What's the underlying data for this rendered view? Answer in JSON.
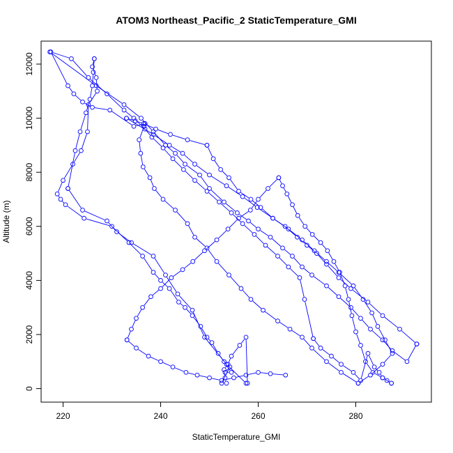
{
  "chart_data": {
    "type": "line",
    "title": "ATOM3 Northeast_Pacific_2 StaticTemperature_GMI",
    "xlabel": "StaticTemperature_GMI",
    "ylabel": "Altitude (m)",
    "xlim": [
      215.5,
      295.5
    ],
    "ylim": [
      -500,
      12850
    ],
    "x_ticks": [
      220,
      240,
      260,
      280
    ],
    "y_ticks": [
      0,
      2000,
      4000,
      6000,
      8000,
      10000,
      12000
    ],
    "grid": false,
    "color": "#0000ff",
    "marker": "open-circle",
    "series": [
      {
        "x": [
          253.5,
          253.2,
          253,
          253.8,
          254.5,
          256.2,
          257.5,
          257.8
        ],
        "y": [
          200,
          400,
          700,
          900,
          1200,
          1600,
          1900,
          200
        ]
      },
      {
        "x": [
          257.5,
          253.5,
          249,
          246.5,
          243.5,
          241,
          238.5,
          234,
          231,
          229,
          224,
          221
        ],
        "y": [
          200,
          900,
          1900,
          2900,
          3500,
          4200,
          4900,
          5400,
          5800,
          6200,
          6600,
          7400
        ]
      },
      {
        "x": [
          221,
          222.5,
          223.5,
          224.7,
          225.5,
          226,
          226.2,
          226.4
        ],
        "y": [
          7400,
          8800,
          9500,
          10200,
          10700,
          11200,
          11700,
          12200
        ]
      },
      {
        "x": [
          226.4,
          226,
          226.8,
          227,
          225.2,
          225,
          223.7,
          222,
          220,
          218.8,
          219.5,
          220.5,
          224.3,
          230,
          233.5,
          236.3,
          238.5,
          240,
          241.8,
          243.7,
          245,
          246.5,
          248.2,
          249.5,
          250.5,
          251.8,
          253,
          254.5,
          253.2,
          254.2,
          252.5
        ],
        "y": [
          12200,
          11900,
          11500,
          11000,
          10500,
          9500,
          8800,
          8300,
          7700,
          7200,
          7000,
          6800,
          6300,
          6000,
          5400,
          4900,
          4300,
          4000,
          3700,
          3200,
          3000,
          2700,
          2300,
          1900,
          1700,
          1300,
          1000,
          600,
          600,
          800,
          200
        ]
      },
      {
        "x": [
          217.3,
          226.8,
          232.5,
          236,
          238.5,
          241,
          243,
          245,
          248,
          250,
          253,
          255.7,
          258,
          260,
          262.5,
          265,
          267,
          269,
          271,
          274,
          276.5,
          279,
          281,
          283,
          285.5,
          287.5,
          290.5,
          292.5
        ],
        "y": [
          12450,
          11200,
          10500,
          10000,
          9500,
          9000,
          8700,
          8300,
          7900,
          7400,
          6900,
          6500,
          6200,
          5900,
          5600,
          5200,
          4900,
          4500,
          4200,
          3800,
          3400,
          3000,
          2600,
          2200,
          1800,
          1400,
          1000,
          1650
        ]
      },
      {
        "x": [
          292.5,
          289,
          285.5,
          282.5,
          279,
          276.5,
          274,
          272,
          270,
          268,
          265.5,
          263,
          260.5,
          258.5,
          256,
          254,
          252.3,
          250.8,
          249.5
        ],
        "y": [
          1650,
          2200,
          2700,
          3200,
          3700,
          4100,
          4600,
          5000,
          5300,
          5600,
          6000,
          6300,
          6700,
          7000,
          7300,
          7800,
          8100,
          8500,
          9000
        ]
      },
      {
        "x": [
          249.5,
          245.5,
          242,
          239,
          236.5,
          234.8,
          233
        ],
        "y": [
          9000,
          9200,
          9400,
          9600,
          9800,
          9900,
          10000
        ]
      },
      {
        "x": [
          233,
          238.5,
          241.8,
          244.5,
          247,
          250,
          253.5,
          256.8,
          259.8,
          263,
          266.2,
          269,
          271.5,
          274,
          276.5,
          279.5,
          281.5,
          283.3,
          284.5,
          286,
          287.5,
          285.5,
          283,
          280.5
        ],
        "y": [
          10000,
          9400,
          9000,
          8700,
          8300,
          7900,
          7500,
          7100,
          6700,
          6300,
          5900,
          5500,
          5100,
          4700,
          4300,
          3800,
          3300,
          2800,
          2300,
          1800,
          1300,
          900,
          500,
          200
        ]
      },
      {
        "x": [
          280.5,
          277,
          274,
          271,
          269,
          266.5,
          264,
          261,
          258.5,
          256.5,
          254,
          251.5,
          249.5,
          247,
          245.5,
          243,
          240.5,
          238.7,
          237.8,
          236.4,
          235.9,
          235.6,
          236.6,
          236.8
        ],
        "y": [
          200,
          600,
          1000,
          1500,
          1900,
          2200,
          2500,
          2900,
          3300,
          3700,
          4200,
          4700,
          5200,
          5600,
          6100,
          6600,
          7000,
          7400,
          7800,
          8200,
          8700,
          9200,
          9700,
          9800
        ]
      },
      {
        "x": [
          236.8,
          234.5,
          229.6,
          226,
          224,
          222.2,
          221,
          217.5,
          221.7,
          225.2,
          229,
          232.5,
          234.5,
          236.8,
          238.2,
          240.5,
          242.5,
          244.7,
          247,
          249.5,
          252,
          254.5,
          256.8,
          259.2,
          261.5,
          264,
          266.2,
          268.5,
          269.5,
          271.3
        ],
        "y": [
          9800,
          9700,
          10300,
          10400,
          10600,
          10900,
          11200,
          12450,
          12200,
          11500,
          10900,
          10300,
          10000,
          9600,
          9300,
          8900,
          8500,
          8100,
          7700,
          7300,
          6900,
          6500,
          6100,
          5700,
          5300,
          4900,
          4500,
          4100,
          3300,
          1850
        ]
      },
      {
        "x": [
          271.3,
          272.8,
          275,
          277,
          279.5,
          281,
          282.5,
          283.8,
          284.8,
          285.5,
          286.4,
          287.3
        ],
        "y": [
          1850,
          1500,
          1200,
          900,
          600,
          300,
          1300,
          800,
          600,
          400,
          300,
          200
        ]
      },
      {
        "x": [
          287.3,
          285.5,
          283.5,
          282,
          281,
          280,
          279.2,
          278.5,
          277.8,
          276.7,
          275.5,
          274.2,
          272.8,
          271.1,
          269.6,
          268.1,
          267,
          265.9,
          265,
          264.2
        ],
        "y": [
          200,
          400,
          600,
          1000,
          1600,
          2100,
          2700,
          3300,
          3800,
          4300,
          4700,
          5100,
          5400,
          5700,
          6000,
          6400,
          6800,
          7200,
          7500,
          7800
        ]
      },
      {
        "x": [
          264.2,
          262,
          260,
          258.4,
          256,
          253.8,
          251.5,
          249,
          246.6,
          244.5,
          242.2,
          240,
          238,
          236.3,
          235,
          234,
          233.1
        ],
        "y": [
          7800,
          7400,
          7000,
          6600,
          6300,
          5900,
          5500,
          5100,
          4700,
          4400,
          4100,
          3700,
          3400,
          3000,
          2600,
          2200,
          1800
        ]
      },
      {
        "x": [
          233.1,
          235,
          237.5,
          240,
          242.5,
          245.2,
          247.5,
          250,
          252.5,
          255,
          257.5,
          260,
          262.5,
          265.6
        ],
        "y": [
          1800,
          1500,
          1200,
          1000,
          800,
          600,
          500,
          400,
          300,
          400,
          500,
          600,
          550,
          500
        ]
      }
    ]
  }
}
